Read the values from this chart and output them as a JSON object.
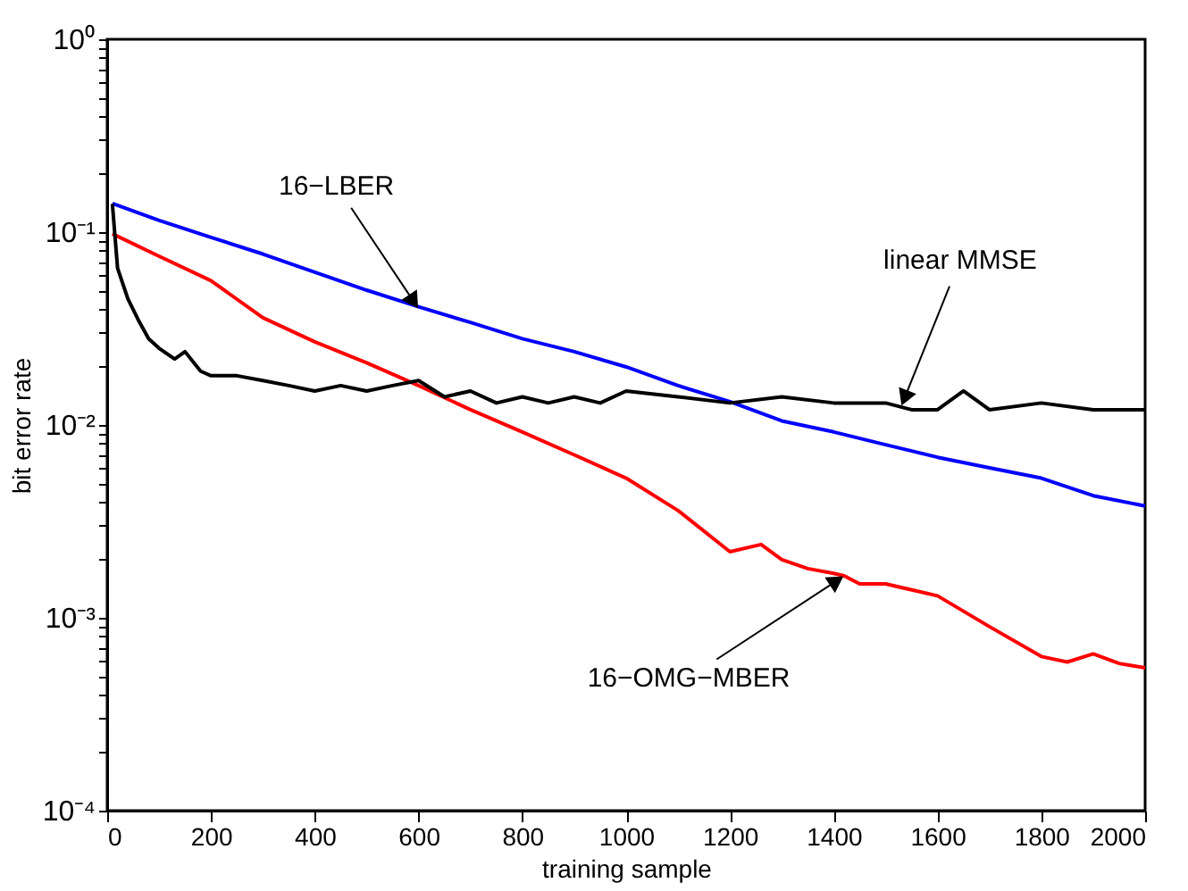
{
  "chart_data": {
    "type": "line",
    "xlabel": "training sample",
    "ylabel": "bit error rate",
    "log": "y",
    "grid": false,
    "line_style": "solid",
    "marker": "none",
    "xlim": [
      0,
      2000
    ],
    "xticks": [
      0,
      200,
      400,
      600,
      800,
      1000,
      1200,
      1400,
      1600,
      1800,
      2000
    ],
    "ylim": [
      0.0001,
      1
    ],
    "yticks": [
      {
        "value": 0.0001,
        "label": "10⁻⁴"
      },
      {
        "value": 0.0002,
        "label": null
      },
      {
        "value": 0.0003,
        "label": null
      },
      {
        "value": 0.0004,
        "label": null
      },
      {
        "value": 0.0005,
        "label": null
      },
      {
        "value": 0.0006,
        "label": null
      },
      {
        "value": 0.0007,
        "label": null
      },
      {
        "value": 0.0008,
        "label": null
      },
      {
        "value": 0.0009,
        "label": null
      },
      {
        "value": 0.001,
        "label": "10⁻³"
      },
      {
        "value": 0.002,
        "label": null
      },
      {
        "value": 0.003,
        "label": null
      },
      {
        "value": 0.004,
        "label": null
      },
      {
        "value": 0.005,
        "label": null
      },
      {
        "value": 0.006,
        "label": null
      },
      {
        "value": 0.007,
        "label": null
      },
      {
        "value": 0.008,
        "label": null
      },
      {
        "value": 0.009,
        "label": null
      },
      {
        "value": 0.01,
        "label": "10⁻²"
      },
      {
        "value": 0.02,
        "label": null
      },
      {
        "value": 0.03,
        "label": null
      },
      {
        "value": 0.04,
        "label": null
      },
      {
        "value": 0.05,
        "label": null
      },
      {
        "value": 0.06,
        "label": null
      },
      {
        "value": 0.07,
        "label": null
      },
      {
        "value": 0.08,
        "label": null
      },
      {
        "value": 0.09,
        "label": null
      },
      {
        "value": 0.1,
        "label": "10⁻¹"
      },
      {
        "value": 0.2,
        "label": null
      },
      {
        "value": 0.3,
        "label": null
      },
      {
        "value": 0.4,
        "label": null
      },
      {
        "value": 0.5,
        "label": null
      },
      {
        "value": 0.6,
        "label": null
      },
      {
        "value": 0.7,
        "label": null
      },
      {
        "value": 0.8,
        "label": null
      },
      {
        "value": 0.9,
        "label": null
      },
      {
        "value": 1,
        "label": "10⁰"
      }
    ],
    "series": [
      {
        "color": "#0000ff",
        "x": [
          10,
          100,
          200,
          300,
          400,
          500,
          600,
          700,
          800,
          900,
          1000,
          1100,
          1200,
          1300,
          1400,
          1500,
          1600,
          1700,
          1800,
          1900,
          2000
        ],
        "values": [
          0.141,
          0.115,
          0.094,
          0.077,
          0.062,
          0.05,
          0.041,
          0.034,
          0.028,
          0.024,
          0.02,
          0.016,
          0.0132,
          0.0105,
          0.0092,
          0.0079,
          0.0068,
          0.006,
          0.0053,
          0.0043,
          0.0038
        ]
      },
      {
        "color": "#ff0000",
        "x": [
          10,
          100,
          200,
          300,
          400,
          500,
          600,
          700,
          800,
          900,
          1000,
          1100,
          1200,
          1260,
          1300,
          1350,
          1400,
          1420,
          1450,
          1500,
          1600,
          1700,
          1800,
          1850,
          1900,
          1950,
          2000
        ],
        "values": [
          0.098,
          0.075,
          0.056,
          0.036,
          0.027,
          0.021,
          0.016,
          0.012,
          0.0092,
          0.007,
          0.0053,
          0.0036,
          0.0022,
          0.0024,
          0.002,
          0.0018,
          0.0017,
          0.00165,
          0.0015,
          0.0015,
          0.0013,
          0.0009,
          0.00063,
          0.00059,
          0.00065,
          0.00058,
          0.00055
        ]
      },
      {
        "color": "#000000",
        "x": [
          10,
          20,
          40,
          60,
          80,
          100,
          130,
          150,
          180,
          200,
          250,
          300,
          350,
          400,
          450,
          500,
          550,
          600,
          650,
          700,
          750,
          800,
          850,
          900,
          950,
          1000,
          1100,
          1200,
          1300,
          1400,
          1500,
          1550,
          1600,
          1650,
          1700,
          1800,
          1900,
          2000
        ],
        "values": [
          0.14,
          0.065,
          0.045,
          0.035,
          0.028,
          0.025,
          0.022,
          0.024,
          0.019,
          0.018,
          0.018,
          0.017,
          0.016,
          0.015,
          0.016,
          0.015,
          0.016,
          0.017,
          0.014,
          0.015,
          0.013,
          0.014,
          0.013,
          0.014,
          0.013,
          0.015,
          0.014,
          0.013,
          0.014,
          0.013,
          0.013,
          0.012,
          0.012,
          0.015,
          0.012,
          0.013,
          0.012,
          0.012
        ]
      }
    ],
    "annotations": [
      {
        "text": "16−LBER",
        "x": 600,
        "y": 0.04
      },
      {
        "text": "linear MMSE",
        "x": 1530,
        "y": 0.0125
      },
      {
        "text": "16−OMG−MBER",
        "x": 1420,
        "y": 0.00165
      }
    ]
  }
}
